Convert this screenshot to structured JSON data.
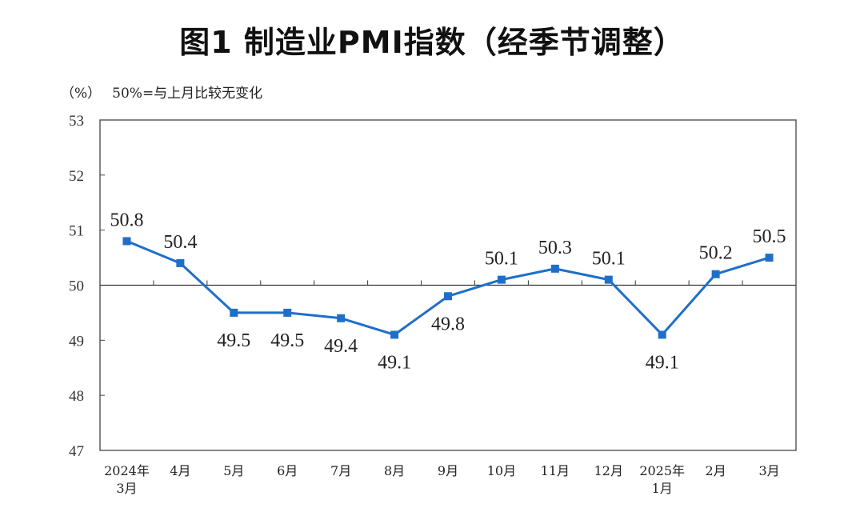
{
  "title": "图1  制造业PMI指数（经季节调整）",
  "unit_label": "（%）",
  "reference_note": "50%=与上月比较无变化",
  "chart_data": {
    "type": "line",
    "title": "图1  制造业PMI指数（经季节调整）",
    "ylabel": "（%）",
    "xlabel": "",
    "ylim": [
      47,
      53
    ],
    "y_ticks": [
      47,
      48,
      49,
      50,
      51,
      52,
      53
    ],
    "reference_line": 50,
    "categories": [
      [
        "2024年",
        "3月"
      ],
      [
        "4月"
      ],
      [
        "5月"
      ],
      [
        "6月"
      ],
      [
        "7月"
      ],
      [
        "8月"
      ],
      [
        "9月"
      ],
      [
        "10月"
      ],
      [
        "11月"
      ],
      [
        "12月"
      ],
      [
        "2025年",
        "1月"
      ],
      [
        "2月"
      ],
      [
        "3月"
      ]
    ],
    "series": [
      {
        "color": "#1f6fc9",
        "values": [
          50.8,
          50.4,
          49.5,
          49.5,
          49.4,
          49.1,
          49.8,
          50.1,
          50.3,
          50.1,
          49.1,
          50.2,
          50.5
        ],
        "label_positions": [
          "above",
          "above",
          "below",
          "below",
          "below",
          "below",
          "below",
          "above",
          "above",
          "above",
          "below",
          "above",
          "above"
        ]
      }
    ],
    "grid": false,
    "legend": "none"
  }
}
